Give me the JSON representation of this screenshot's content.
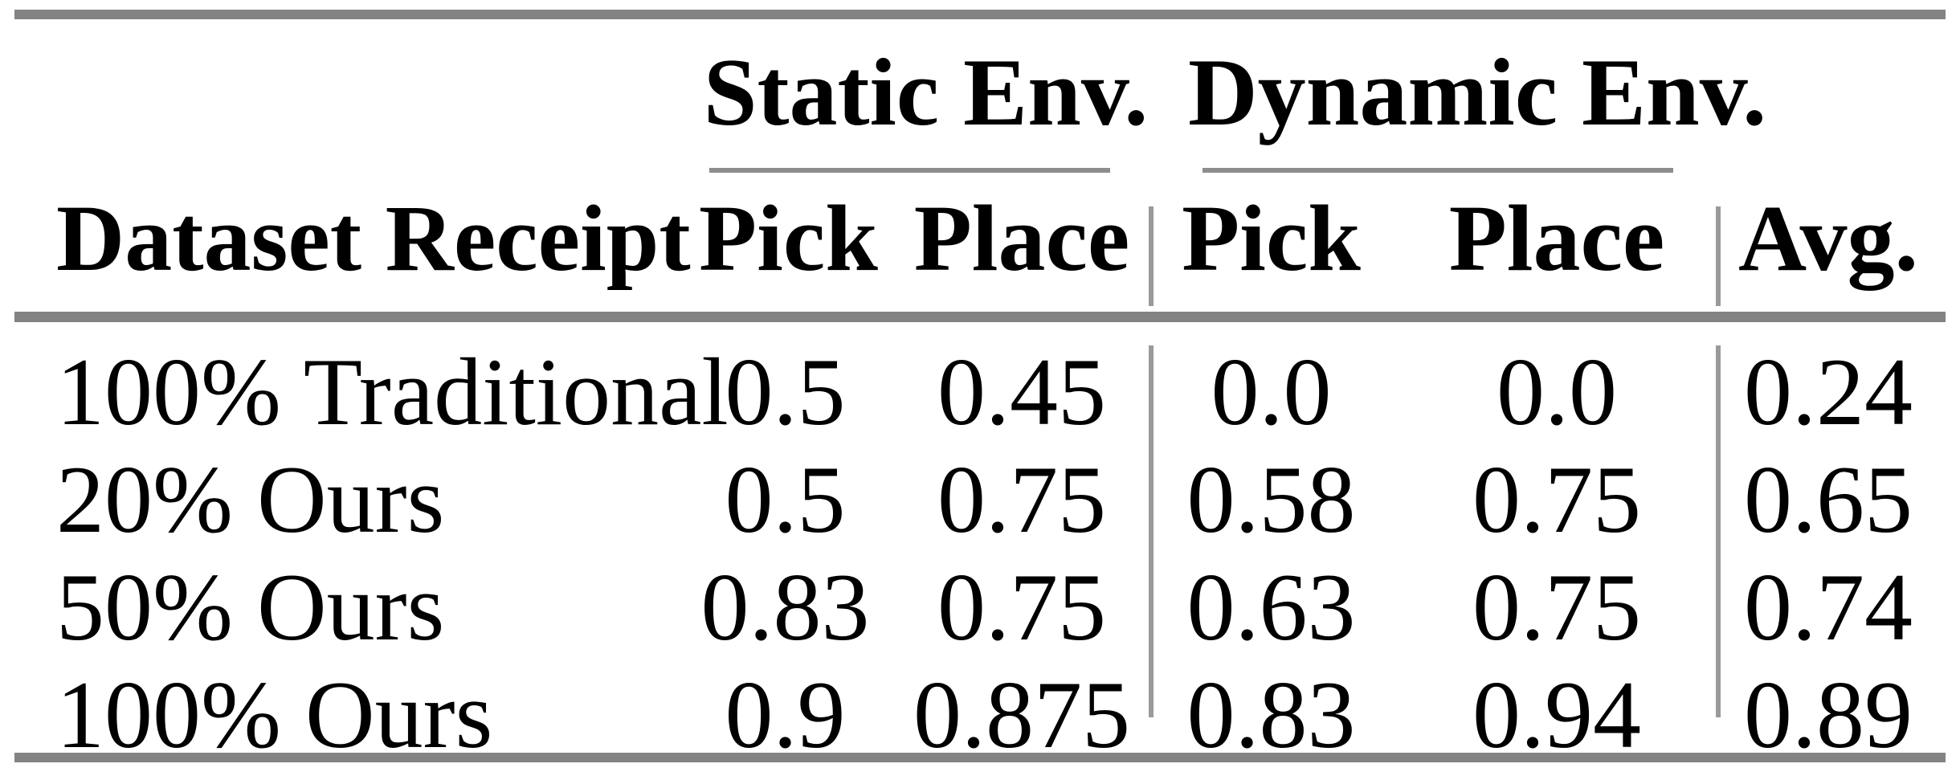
{
  "table": {
    "groups": [
      {
        "label": "Static Env."
      },
      {
        "label": "Dynamic Env."
      }
    ],
    "headers": {
      "dataset": "Dataset Receipt",
      "static_pick": "Pick",
      "static_place": "Place",
      "dynamic_pick": "Pick",
      "dynamic_place": "Place",
      "avg": "Avg."
    },
    "rows": [
      {
        "label": "100% Traditional",
        "static_pick": "0.5",
        "static_place": "0.45",
        "dynamic_pick": "0.0",
        "dynamic_place": "0.0",
        "avg": "0.24"
      },
      {
        "label": "20% Ours",
        "static_pick": "0.5",
        "static_place": "0.75",
        "dynamic_pick": "0.58",
        "dynamic_place": "0.75",
        "avg": "0.65"
      },
      {
        "label": "50% Ours",
        "static_pick": "0.83",
        "static_place": "0.75",
        "dynamic_pick": "0.63",
        "dynamic_place": "0.75",
        "avg": "0.74"
      },
      {
        "label": "100% Ours",
        "static_pick": "0.9",
        "static_place": "0.875",
        "dynamic_pick": "0.83",
        "dynamic_place": "0.94",
        "avg": "0.89"
      }
    ],
    "colors": {
      "thick_rule": "#838383",
      "cmidrule": "#8d8d8d",
      "divider": "#9a9a9a",
      "text": "#000000",
      "background": "#ffffff"
    }
  }
}
